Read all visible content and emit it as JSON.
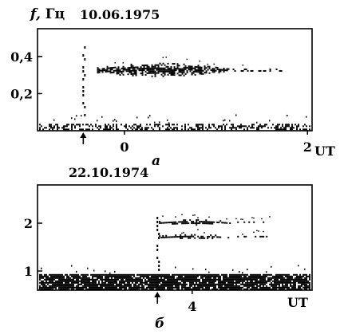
{
  "chart_data": [
    {
      "type": "spectrogram",
      "panel_label": "а",
      "date": "10.06.1975",
      "ylabel_var": "f,",
      "ylabel_unit": "Гц",
      "xlabel": "UT",
      "x_ticks": [
        {
          "value": 0,
          "label": "0"
        },
        {
          "value": 2,
          "label": "2"
        }
      ],
      "y_ticks": [
        {
          "value": 0.2,
          "label": "0,2"
        },
        {
          "value": 0.4,
          "label": "0,4"
        }
      ],
      "xlim": [
        -0.95,
        2.05
      ],
      "ylim": [
        0.0,
        0.55
      ],
      "arrow_x": -0.45,
      "onset_x": -0.45,
      "bands": [
        {
          "x_start": -0.3,
          "x_end": 1.75,
          "f_center": 0.33,
          "f_halfwidth": 0.035
        }
      ],
      "baseline_f": 0.02
    },
    {
      "type": "spectrogram",
      "panel_label": "б",
      "date": "22.10.1974",
      "xlabel": "UT",
      "x_ticks": [
        {
          "value": 4,
          "label": "4"
        }
      ],
      "y_ticks": [
        {
          "value": 1,
          "label": "1"
        },
        {
          "value": 2,
          "label": "2"
        }
      ],
      "xlim": [
        2.0,
        5.55
      ],
      "ylim": [
        0.6,
        2.8
      ],
      "arrow_x": 3.55,
      "onset_x": 3.55,
      "bands": [
        {
          "x_start": 3.55,
          "x_end": 5.0,
          "f_center": 2.03,
          "f_halfwidth": 0.05
        },
        {
          "x_start": 3.55,
          "x_end": 5.0,
          "f_center": 1.73,
          "f_halfwidth": 0.04
        }
      ],
      "baseline_f": 0.87
    }
  ]
}
